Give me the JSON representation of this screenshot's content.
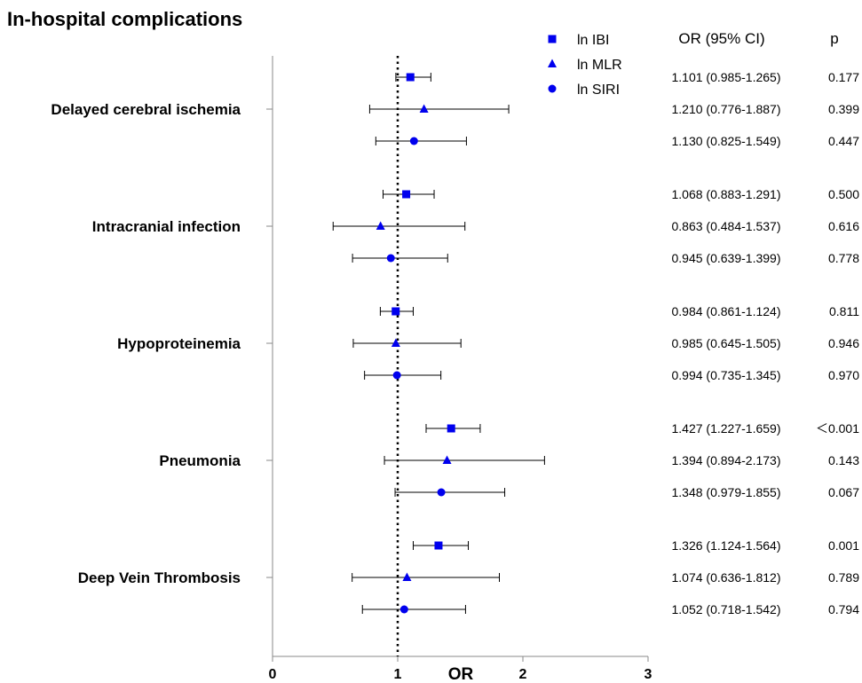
{
  "chart_data": {
    "type": "forest",
    "title": "In-hospital complications",
    "xlabel": "OR",
    "xlim": [
      0,
      3
    ],
    "xticks": [
      0,
      1,
      2,
      3
    ],
    "reference_line": 1,
    "headers": {
      "or": "OR (95% CI)",
      "p": "p"
    },
    "marker_color": "#0000ee",
    "series": [
      {
        "name": "ln IBI",
        "marker": "square"
      },
      {
        "name": "ln MLR",
        "marker": "triangle"
      },
      {
        "name": "ln SIRI",
        "marker": "circle"
      }
    ],
    "groups": [
      {
        "label": "Delayed cerebral ischemia",
        "rows": [
          {
            "or": 1.101,
            "lo": 0.985,
            "hi": 1.265,
            "text": "1.101 (0.985-1.265)",
            "p": "0.177"
          },
          {
            "or": 1.21,
            "lo": 0.776,
            "hi": 1.887,
            "text": "1.210 (0.776-1.887)",
            "p": "0.399"
          },
          {
            "or": 1.13,
            "lo": 0.825,
            "hi": 1.549,
            "text": "1.130 (0.825-1.549)",
            "p": "0.447"
          }
        ]
      },
      {
        "label": "Intracranial infection",
        "rows": [
          {
            "or": 1.068,
            "lo": 0.883,
            "hi": 1.291,
            "text": "1.068 (0.883-1.291)",
            "p": "0.500"
          },
          {
            "or": 0.863,
            "lo": 0.484,
            "hi": 1.537,
            "text": "0.863 (0.484-1.537)",
            "p": "0.616"
          },
          {
            "or": 0.945,
            "lo": 0.639,
            "hi": 1.399,
            "text": "0.945 (0.639-1.399)",
            "p": "0.778"
          }
        ]
      },
      {
        "label": "Hypoproteinemia",
        "rows": [
          {
            "or": 0.984,
            "lo": 0.861,
            "hi": 1.124,
            "text": "0.984 (0.861-1.124)",
            "p": "0.811"
          },
          {
            "or": 0.985,
            "lo": 0.645,
            "hi": 1.505,
            "text": "0.985 (0.645-1.505)",
            "p": "0.946"
          },
          {
            "or": 0.994,
            "lo": 0.735,
            "hi": 1.345,
            "text": "0.994 (0.735-1.345)",
            "p": "0.970"
          }
        ]
      },
      {
        "label": "Pneumonia",
        "rows": [
          {
            "or": 1.427,
            "lo": 1.227,
            "hi": 1.659,
            "text": "1.427 (1.227-1.659)",
            "p": "＜0.001"
          },
          {
            "or": 1.394,
            "lo": 0.894,
            "hi": 2.173,
            "text": "1.394 (0.894-2.173)",
            "p": "0.143"
          },
          {
            "or": 1.348,
            "lo": 0.979,
            "hi": 1.855,
            "text": "1.348 (0.979-1.855)",
            "p": "0.067"
          }
        ]
      },
      {
        "label": "Deep Vein Thrombosis",
        "rows": [
          {
            "or": 1.326,
            "lo": 1.124,
            "hi": 1.564,
            "text": "1.326 (1.124-1.564)",
            "p": "0.001"
          },
          {
            "or": 1.074,
            "lo": 0.636,
            "hi": 1.812,
            "text": "1.074 (0.636-1.812)",
            "p": "0.789"
          },
          {
            "or": 1.052,
            "lo": 0.718,
            "hi": 1.542,
            "text": "1.052 (0.718-1.542)",
            "p": "0.794"
          }
        ]
      }
    ]
  }
}
